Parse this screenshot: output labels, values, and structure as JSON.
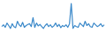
{
  "chart_data": {
    "type": "line",
    "values": [
      30,
      35,
      28,
      40,
      33,
      25,
      38,
      30,
      27,
      45,
      35,
      30,
      42,
      28,
      33,
      36,
      38,
      30,
      55,
      28,
      40,
      32,
      36,
      30,
      25,
      33,
      38,
      30,
      35,
      28,
      32,
      40,
      30,
      36,
      27,
      33,
      30,
      35,
      28,
      38,
      95,
      25,
      33,
      30,
      28,
      40,
      35,
      30,
      45,
      33,
      38,
      30,
      28,
      40,
      35,
      30,
      33,
      38,
      30,
      35
    ],
    "color": "#3a88c9",
    "ylim": [
      0,
      100
    ],
    "tick_labels": false,
    "grid": false
  }
}
